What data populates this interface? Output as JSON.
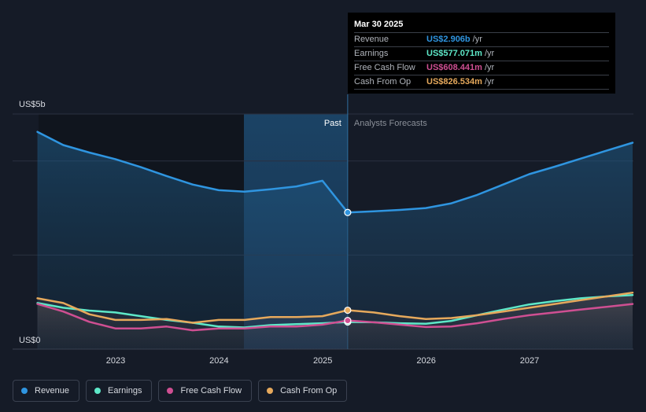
{
  "chart_data": {
    "type": "line",
    "ylabel_top": "US$5b",
    "ylabel_bottom": "US$0",
    "ylim": [
      0,
      5
    ],
    "x_ticks": [
      "2023",
      "2024",
      "2025",
      "2026",
      "2027"
    ],
    "divider_label_past": "Past",
    "divider_label_forecast": "Analysts Forecasts",
    "divider_date": "2025-03-30",
    "series": [
      {
        "name": "Revenue",
        "color": "#2f95e0",
        "x": [
          "2022-03-31",
          "2022-06-30",
          "2022-09-30",
          "2022-12-31",
          "2023-03-31",
          "2023-06-30",
          "2023-09-30",
          "2023-12-31",
          "2024-03-31",
          "2024-06-30",
          "2024-09-30",
          "2024-12-31",
          "2025-03-30",
          "2025-06-30",
          "2025-09-30",
          "2025-12-31",
          "2026-03-31",
          "2026-06-30",
          "2026-09-30",
          "2026-12-31",
          "2027-03-31",
          "2027-06-30",
          "2027-09-30",
          "2027-12-31"
        ],
        "y": [
          4.62,
          4.34,
          4.18,
          4.04,
          3.87,
          3.68,
          3.5,
          3.38,
          3.35,
          3.4,
          3.46,
          3.58,
          2.906,
          2.93,
          2.96,
          3.0,
          3.1,
          3.28,
          3.5,
          3.72,
          3.88,
          4.05,
          4.22,
          4.39
        ]
      },
      {
        "name": "Earnings",
        "color": "#5ee8c8",
        "x": [
          "2022-03-31",
          "2022-06-30",
          "2022-09-30",
          "2022-12-31",
          "2023-03-31",
          "2023-06-30",
          "2023-09-30",
          "2023-12-31",
          "2024-03-31",
          "2024-06-30",
          "2024-09-30",
          "2024-12-31",
          "2025-03-30",
          "2025-06-30",
          "2025-09-30",
          "2025-12-31",
          "2026-03-31",
          "2026-06-30",
          "2026-09-30",
          "2026-12-31",
          "2027-03-31",
          "2027-06-30",
          "2027-09-30",
          "2027-12-31"
        ],
        "y": [
          0.98,
          0.88,
          0.82,
          0.78,
          0.7,
          0.62,
          0.56,
          0.48,
          0.46,
          0.51,
          0.53,
          0.55,
          0.577,
          0.57,
          0.55,
          0.54,
          0.6,
          0.72,
          0.84,
          0.95,
          1.02,
          1.08,
          1.12,
          1.15
        ]
      },
      {
        "name": "Free Cash Flow",
        "color": "#cf4f92",
        "x": [
          "2022-03-31",
          "2022-06-30",
          "2022-09-30",
          "2022-12-31",
          "2023-03-31",
          "2023-06-30",
          "2023-09-30",
          "2023-12-31",
          "2024-03-31",
          "2024-06-30",
          "2024-09-30",
          "2024-12-31",
          "2025-03-30",
          "2025-06-30",
          "2025-09-30",
          "2025-12-31",
          "2026-03-31",
          "2026-06-30",
          "2026-09-30",
          "2026-12-31",
          "2027-03-31",
          "2027-06-30",
          "2027-09-30",
          "2027-12-31"
        ],
        "y": [
          0.96,
          0.8,
          0.58,
          0.44,
          0.44,
          0.48,
          0.4,
          0.44,
          0.44,
          0.48,
          0.48,
          0.52,
          0.608,
          0.57,
          0.52,
          0.47,
          0.48,
          0.55,
          0.64,
          0.72,
          0.78,
          0.84,
          0.9,
          0.96
        ]
      },
      {
        "name": "Cash From Op",
        "color": "#e6a95c",
        "x": [
          "2022-03-31",
          "2022-06-30",
          "2022-09-30",
          "2022-12-31",
          "2023-03-31",
          "2023-06-30",
          "2023-09-30",
          "2023-12-31",
          "2024-03-31",
          "2024-06-30",
          "2024-09-30",
          "2024-12-31",
          "2025-03-30",
          "2025-06-30",
          "2025-09-30",
          "2025-12-31",
          "2026-03-31",
          "2026-06-30",
          "2026-09-30",
          "2026-12-31",
          "2027-03-31",
          "2027-06-30",
          "2027-09-30",
          "2027-12-31"
        ],
        "y": [
          1.08,
          0.98,
          0.74,
          0.62,
          0.62,
          0.64,
          0.56,
          0.62,
          0.62,
          0.68,
          0.68,
          0.7,
          0.827,
          0.78,
          0.7,
          0.64,
          0.66,
          0.72,
          0.8,
          0.88,
          0.96,
          1.04,
          1.12,
          1.2
        ]
      }
    ]
  },
  "tooltip": {
    "date": "Mar 30 2025",
    "rows": [
      {
        "label": "Revenue",
        "value": "US$2.906b",
        "unit": "/yr",
        "color": "#2f95e0"
      },
      {
        "label": "Earnings",
        "value": "US$577.071m",
        "unit": "/yr",
        "color": "#5ee8c8"
      },
      {
        "label": "Free Cash Flow",
        "value": "US$608.441m",
        "unit": "/yr",
        "color": "#cf4f92"
      },
      {
        "label": "Cash From Op",
        "value": "US$826.534m",
        "unit": "/yr",
        "color": "#e6a95c"
      }
    ]
  },
  "legend": [
    {
      "label": "Revenue",
      "color": "#2f95e0",
      "icon": "circle-dot-icon"
    },
    {
      "label": "Earnings",
      "color": "#5ee8c8",
      "icon": "circle-dot-icon"
    },
    {
      "label": "Free Cash Flow",
      "color": "#cf4f92",
      "icon": "circle-dot-icon"
    },
    {
      "label": "Cash From Op",
      "color": "#e6a95c",
      "icon": "circle-dot-icon"
    }
  ]
}
